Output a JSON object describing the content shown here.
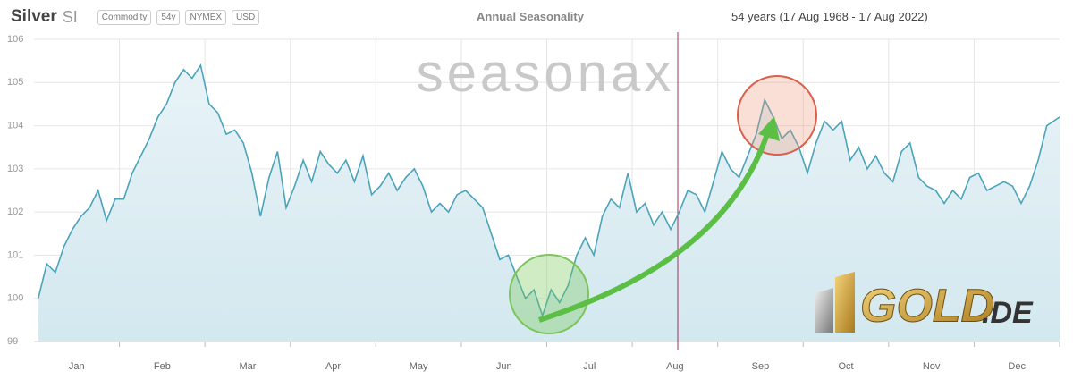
{
  "chart_data": {
    "type": "line",
    "title": "Silver",
    "symbol": "SI",
    "tags": [
      "Commodity",
      "54y",
      "NYMEX",
      "USD"
    ],
    "subtitle": "Annual Seasonality",
    "date_range": "54 years (17 Aug 1968 - 17 Aug 2022)",
    "watermarks": [
      "seasonax",
      "GOLD",
      ".DE"
    ],
    "color": "#4ba3b9",
    "grid": true,
    "ylim": [
      99,
      106
    ],
    "yticks": [
      99,
      100,
      101,
      102,
      103,
      104,
      105,
      106
    ],
    "categories": [
      "Jan",
      "Feb",
      "Mar",
      "Apr",
      "May",
      "Jun",
      "Jul",
      "Aug",
      "Sep",
      "Oct",
      "Nov",
      "Dec"
    ],
    "values": [
      [
        100.0,
        100.8,
        100.6,
        101.2,
        101.6,
        101.9,
        102.1,
        102.5,
        101.8,
        102.3
      ],
      [
        102.3,
        102.9,
        103.3,
        103.7,
        104.2,
        104.5,
        105.0,
        105.3,
        105.1,
        105.4
      ],
      [
        104.5,
        104.3,
        103.8,
        103.9,
        103.6,
        102.9,
        101.9,
        102.8,
        103.4,
        102.1
      ],
      [
        102.6,
        103.2,
        102.7,
        103.4,
        103.1,
        102.9,
        103.2,
        102.7,
        103.3,
        102.4
      ],
      [
        102.6,
        102.9,
        102.5,
        102.8,
        103.0,
        102.6,
        102.0,
        102.2,
        102.0,
        102.4
      ],
      [
        102.5,
        102.3,
        102.1,
        101.5,
        100.9,
        101.0,
        100.5,
        100.0,
        100.2,
        99.6
      ],
      [
        100.2,
        99.9,
        100.3,
        101.0,
        101.4,
        101.0,
        101.9,
        102.3,
        102.1,
        102.9
      ],
      [
        102.0,
        102.2,
        101.7,
        102.0,
        101.6,
        102.0,
        102.5,
        102.4,
        102.0,
        102.7
      ],
      [
        103.4,
        103.0,
        102.8,
        103.3,
        103.8,
        104.6,
        104.2,
        103.7,
        103.9,
        103.5
      ],
      [
        102.9,
        103.6,
        104.1,
        103.9,
        104.1,
        103.2,
        103.5,
        103.0,
        103.3,
        102.9
      ],
      [
        102.7,
        103.4,
        103.6,
        102.8,
        102.6,
        102.5,
        102.2,
        102.5,
        102.3,
        102.8
      ],
      [
        102.9,
        102.5,
        102.6,
        102.7,
        102.6,
        102.2,
        102.6,
        103.2,
        104.0,
        104.2
      ]
    ]
  }
}
